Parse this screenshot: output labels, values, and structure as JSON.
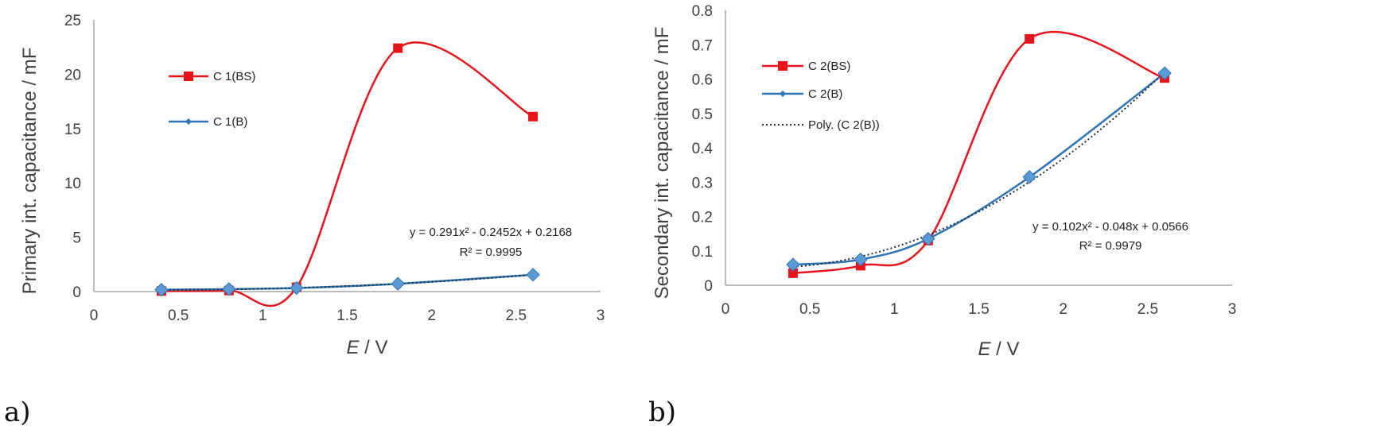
{
  "colors": {
    "red": "#e8141c",
    "blue": "#2e75b6",
    "diamond": "#5b9bd5",
    "trend": "#1f2f3f",
    "axis": "#a6a6a6",
    "text": "#404040"
  },
  "chart_data": [
    {
      "type": "scatter",
      "panel_label": "a)",
      "xlabel_italic": "E",
      "xlabel_rest": " / V",
      "ylabel": "Primary int. capacitance  / mF",
      "xlim": [
        0,
        3
      ],
      "ylim": [
        0,
        25
      ],
      "x_ticks": [
        "0",
        "0.5",
        "1",
        "1.5",
        "2",
        "2.5",
        "3"
      ],
      "y_ticks": [
        "0",
        "5",
        "10",
        "15",
        "20",
        "25"
      ],
      "grid": false,
      "series": [
        {
          "name": "C 1(BS)",
          "color": "#e8141c",
          "marker": "square",
          "x": [
            0.4,
            0.8,
            1.2,
            1.8,
            2.6
          ],
          "y": [
            0.05,
            0.1,
            0.4,
            22.4,
            16.1
          ]
        },
        {
          "name": "C 1(B)",
          "color": "#2e75b6",
          "marker": "diamond",
          "x": [
            0.4,
            0.8,
            1.2,
            1.8,
            2.6
          ],
          "y": [
            0.17,
            0.23,
            0.33,
            0.72,
            1.55
          ]
        }
      ],
      "trendline": {
        "name": "",
        "coeffs": [
          0.291,
          -0.2452,
          0.2168
        ],
        "dotted": true
      },
      "equation": "y = 0.291x² - 0.2452x + 0.2168",
      "r_squared": "R² = 0.9995"
    },
    {
      "type": "scatter",
      "panel_label": "b)",
      "xlabel_italic": "E",
      "xlabel_rest": " / V",
      "ylabel": "Secondary int. capacitance  / mF",
      "xlim": [
        0,
        3
      ],
      "ylim": [
        0,
        0.8
      ],
      "x_ticks": [
        "0",
        "0.5",
        "1",
        "1.5",
        "2",
        "2.5",
        "3"
      ],
      "y_ticks": [
        "0",
        "0.1",
        "0.2",
        "0.3",
        "0.4",
        "0.5",
        "0.6",
        "0.7",
        "0.8"
      ],
      "grid": false,
      "series": [
        {
          "name": "C 2(BS)",
          "color": "#e8141c",
          "marker": "square",
          "x": [
            0.4,
            0.8,
            1.2,
            1.8,
            2.6
          ],
          "y": [
            0.035,
            0.057,
            0.13,
            0.717,
            0.603
          ]
        },
        {
          "name": "C 2(B)",
          "color": "#2e75b6",
          "marker": "diamond",
          "x": [
            0.4,
            0.8,
            1.2,
            1.8,
            2.6
          ],
          "y": [
            0.06,
            0.075,
            0.135,
            0.315,
            0.617
          ]
        }
      ],
      "trendline": {
        "name": "Poly. (C 2(B))",
        "coeffs": [
          0.102,
          -0.048,
          0.0566
        ],
        "dotted": true
      },
      "equation": "y = 0.102x² - 0.048x + 0.0566",
      "r_squared": "R² = 0.9979"
    }
  ]
}
